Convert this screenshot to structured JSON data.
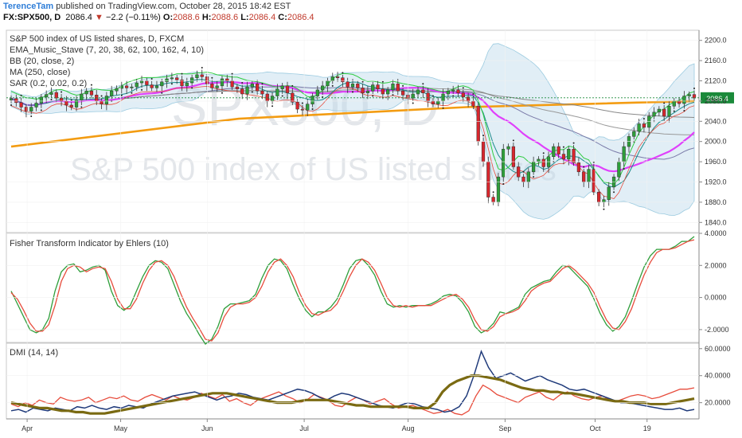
{
  "header": {
    "user": "TerenceTam",
    "published": "published on TradingView.com, October 28, 2015 18:42 EST",
    "symbol": "FX:SPX500, D",
    "price": "2086.4",
    "change": "−2.2 (−0.11%)",
    "o_label": "O:",
    "o": "2088.6",
    "h_label": "H:",
    "h": "2088.6",
    "l_label": "L:",
    "l": "2086.4",
    "c_label": "C:",
    "c": "2086.4"
  },
  "watermark": {
    "symbol": "SPX500, D",
    "name": "S&P 500 index of US listed shares"
  },
  "colors": {
    "up": "#2e9e3a",
    "down": "#d8262d",
    "ema_fast": "#2ecc40",
    "ema_mid": "#e040fb",
    "ma250": "#f39c12",
    "bb_fill": "#bcd9ea",
    "fisher": "#2e9e3a",
    "trigger": "#e74c3c",
    "plus_di": "#e74c3c",
    "minus_di": "#1f3a7a",
    "adx": "#7a6a12",
    "price_tag": "#1a8a3a"
  },
  "chart_data": [
    {
      "panel": "price",
      "type": "candlestick",
      "legend": [
        "S&P 500 index of US listed shares, D, FXCM",
        "EMA_Music_Stave (7, 20, 38, 62, 100, 162, 4, 10)",
        "BB (20, close, 2)",
        "MA (250, close)",
        "SAR (0.2, 0.02, 0.2)"
      ],
      "ylim": [
        1820,
        2220
      ],
      "yticks": [
        "2200.0",
        "2160.0",
        "2120.0",
        "2080.0",
        "2040.0",
        "2000.0",
        "1960.0",
        "1920.0",
        "1880.0",
        "1840.0"
      ],
      "last_price": "2086.4",
      "close": [
        2085,
        2077,
        2068,
        2060,
        2068,
        2076,
        2088,
        2093,
        2097,
        2086,
        2080,
        2072,
        2068,
        2082,
        2094,
        2100,
        2092,
        2080,
        2074,
        2090,
        2100,
        2105,
        2110,
        2106,
        2108,
        2116,
        2120,
        2112,
        2106,
        2110,
        2118,
        2124,
        2126,
        2122,
        2110,
        2116,
        2126,
        2132,
        2128,
        2114,
        2106,
        2110,
        2124,
        2120,
        2108,
        2104,
        2094,
        2108,
        2114,
        2100,
        2094,
        2080,
        2090,
        2104,
        2110,
        2096,
        2078,
        2064,
        2062,
        2074,
        2090,
        2102,
        2110,
        2120,
        2128,
        2126,
        2118,
        2108,
        2114,
        2106,
        2096,
        2100,
        2112,
        2104,
        2094,
        2102,
        2114,
        2100,
        2092,
        2086,
        2094,
        2102,
        2096,
        2080,
        2074,
        2080,
        2094,
        2100,
        2102,
        2096,
        2088,
        2080,
        2070,
        2000,
        1960,
        1890,
        1880,
        1930,
        1985,
        1990,
        1950,
        1930,
        1920,
        1940,
        1960,
        1965,
        1950,
        1970,
        1990,
        1975,
        1965,
        1985,
        1958,
        1940,
        1920,
        1945,
        1900,
        1880,
        1885,
        1910,
        1930,
        1960,
        1990,
        2010,
        2020,
        2035,
        2028,
        2050,
        2058,
        2064,
        2050,
        2070,
        2080,
        2075,
        2090,
        2093,
        2086
      ],
      "x_axis_labels": [
        "Apr",
        "May",
        "Jun",
        "Jul",
        "Aug",
        "Sep",
        "Oct",
        "19"
      ],
      "ma250": [
        1990,
        2045,
        2068,
        2080
      ]
    },
    {
      "panel": "fisher",
      "type": "line",
      "legend": "Fisher Transform Indicator by Ehlers (10)",
      "ylim": [
        -2.8,
        4.0
      ],
      "yticks": [
        "4.0000",
        "2.0000",
        "0.0000",
        "-2.0000"
      ],
      "series": [
        {
          "values": [
            0.4,
            -0.4,
            -1.2,
            -2.0,
            -2.2,
            -2.0,
            -1.3,
            0.4,
            1.6,
            2.0,
            2.1,
            1.6,
            1.7,
            1.9,
            2.0,
            1.7,
            0.4,
            -0.5,
            -0.8,
            -0.5,
            0.4,
            1.3,
            2.0,
            2.3,
            2.2,
            1.8,
            0.8,
            -0.2,
            -1.0,
            -1.6,
            -2.3,
            -2.9,
            -2.6,
            -1.8,
            -0.7,
            -0.4,
            -0.4,
            -0.3,
            -0.2,
            0.2,
            1.2,
            2.0,
            2.4,
            2.3,
            1.8,
            0.8,
            -0.1,
            -0.8,
            -1.2,
            -0.9,
            -0.9,
            -0.6,
            -0.1,
            0.8,
            1.8,
            2.3,
            2.4,
            2.0,
            1.4,
            0.4,
            -0.4,
            -0.6,
            -0.5,
            -0.6,
            -0.5,
            -0.5,
            -0.5,
            -0.4,
            -0.2,
            0.1,
            0.2,
            0.1,
            -0.3,
            -0.9,
            -1.8,
            -2.2,
            -2.0,
            -1.6,
            -0.9,
            -1.0,
            -0.8,
            -0.6,
            0.2,
            0.6,
            0.8,
            1.0,
            1.1,
            1.6,
            2.0,
            1.9,
            1.5,
            1.1,
            0.7,
            -0.1,
            -1.0,
            -1.7,
            -2.1,
            -1.8,
            -1.2,
            -0.2,
            0.9,
            1.9,
            2.6,
            3.0,
            3.0,
            3.0,
            3.2,
            3.5,
            3.5,
            3.8
          ]
        },
        {
          "values": [
            0.3,
            -0.1,
            -0.8,
            -1.6,
            -2.1,
            -2.1,
            -1.7,
            -0.5,
            1.0,
            1.8,
            2.0,
            1.9,
            1.6,
            1.8,
            1.9,
            1.8,
            1.0,
            -0.1,
            -0.7,
            -0.7,
            -0.1,
            0.9,
            1.7,
            2.2,
            2.3,
            2.0,
            1.3,
            0.3,
            -0.6,
            -1.3,
            -1.9,
            -2.6,
            -2.7,
            -2.2,
            -1.2,
            -0.6,
            -0.4,
            -0.4,
            -0.3,
            0.0,
            0.7,
            1.6,
            2.2,
            2.4,
            2.0,
            1.3,
            0.3,
            -0.5,
            -1.0,
            -1.1,
            -0.9,
            -0.8,
            -0.4,
            0.4,
            1.3,
            2.0,
            2.4,
            2.2,
            1.7,
            0.9,
            0.0,
            -0.5,
            -0.6,
            -0.5,
            -0.6,
            -0.5,
            -0.5,
            -0.5,
            -0.3,
            -0.1,
            0.1,
            0.2,
            -0.1,
            -0.6,
            -1.4,
            -2.0,
            -2.1,
            -1.8,
            -1.2,
            -1.0,
            -0.9,
            -0.7,
            -0.2,
            0.4,
            0.7,
            0.9,
            1.0,
            1.4,
            1.8,
            2.0,
            1.7,
            1.3,
            0.9,
            0.3,
            -0.6,
            -1.4,
            -1.9,
            -2.0,
            -1.5,
            -0.7,
            0.4,
            1.4,
            2.2,
            2.8,
            3.0,
            3.0,
            3.1,
            3.3,
            3.5,
            3.6
          ]
        }
      ]
    },
    {
      "panel": "dmi",
      "type": "line",
      "legend": "DMI (14, 14)",
      "ylim": [
        8,
        64
      ],
      "yticks": [
        "60.0000",
        "40.0000",
        "20.0000"
      ],
      "series": [
        {
          "values": [
            19,
            17,
            20,
            18,
            22,
            20,
            19,
            24,
            22,
            21,
            22,
            24,
            20,
            22,
            24,
            23,
            25,
            22,
            21,
            24,
            26,
            24,
            22,
            25,
            23,
            22,
            24,
            27,
            25,
            23,
            26,
            21,
            23,
            20,
            18,
            22,
            24,
            26,
            28,
            25,
            23,
            20,
            22,
            26,
            24,
            22,
            18,
            17,
            21,
            24,
            22,
            19,
            21,
            23,
            19,
            16,
            17,
            18,
            16,
            14,
            12,
            13,
            15,
            12,
            11,
            14,
            25,
            33,
            30,
            26,
            24,
            22,
            20,
            24,
            26,
            28,
            24,
            22,
            26,
            28,
            25,
            23,
            22,
            24,
            25,
            22,
            21,
            23,
            25,
            26,
            25,
            23,
            24,
            26,
            28,
            30,
            30,
            31
          ]
        },
        {
          "values": [
            14,
            15,
            13,
            16,
            15,
            14,
            16,
            15,
            14,
            17,
            16,
            18,
            16,
            15,
            17,
            16,
            18,
            17,
            16,
            19,
            21,
            23,
            25,
            26,
            27,
            28,
            26,
            24,
            22,
            24,
            25,
            27,
            26,
            24,
            23,
            22,
            24,
            26,
            28,
            30,
            29,
            27,
            24,
            22,
            25,
            27,
            26,
            24,
            22,
            20,
            18,
            17,
            16,
            18,
            20,
            19,
            17,
            16,
            15,
            13,
            14,
            17,
            25,
            40,
            58,
            46,
            38,
            40,
            42,
            39,
            36,
            38,
            40,
            37,
            35,
            33,
            30,
            29,
            30,
            28,
            26,
            24,
            22,
            20,
            20,
            19,
            18,
            17,
            16,
            15,
            15,
            16,
            14,
            15
          ]
        },
        {
          "values": [
            20,
            19,
            18,
            17,
            16,
            16,
            15,
            14,
            14,
            13,
            13,
            12,
            12,
            12,
            13,
            14,
            15,
            16,
            17,
            18,
            19,
            20,
            21,
            22,
            23,
            24,
            25,
            26,
            27,
            27,
            27,
            26,
            25,
            24,
            23,
            22,
            21,
            20,
            20,
            20,
            21,
            22,
            22,
            22,
            22,
            21,
            20,
            19,
            18,
            18,
            17,
            17,
            17,
            17,
            17,
            17,
            16,
            16,
            16,
            20,
            28,
            33,
            36,
            38,
            40,
            40,
            39,
            38,
            37,
            35,
            33,
            31,
            30,
            29,
            29,
            28,
            28,
            27,
            27,
            26,
            25,
            24,
            23,
            22,
            21,
            21,
            20,
            20,
            20,
            19,
            19,
            19,
            20,
            21,
            22,
            23
          ]
        }
      ]
    }
  ],
  "x_axis_labels": [
    "Apr",
    "May",
    "Jun",
    "Jul",
    "Aug",
    "Sep",
    "Oct",
    "19"
  ]
}
